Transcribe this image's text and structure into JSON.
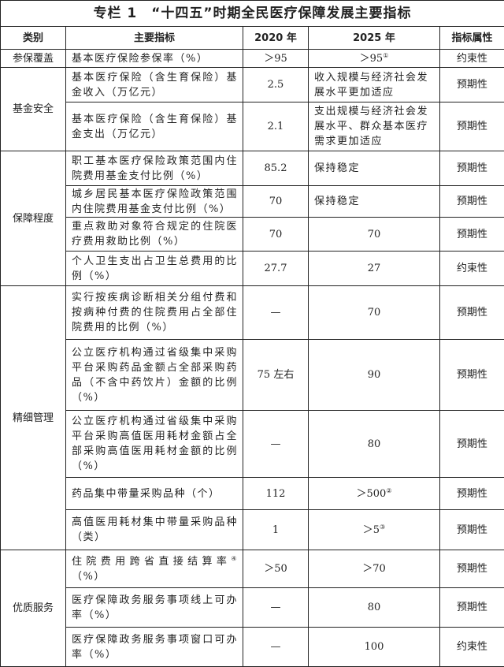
{
  "title": "专栏 1　“十四五”时期全民医疗保障发展主要指标",
  "headers": [
    "类别",
    "主要指标",
    "2020 年",
    "2025 年",
    "指标属性"
  ],
  "rows": [
    {
      "category": "参保覆盖",
      "span": 1,
      "indicator": "基本医疗保险参保率（%）",
      "v2020": "＞95",
      "v2025": "＞95",
      "v2025_sup": "①",
      "attr": "约束性"
    },
    {
      "category": "基金安全",
      "span": 2,
      "indicator": "基本医疗保险（含生育保险）基金收入（万亿元）",
      "v2020": "2.5",
      "v2025": "收入规模与经济社会发展水平更加适应",
      "v2025_left": true,
      "attr": "预期性"
    },
    {
      "indicator": "基本医疗保险（含生育保险）基金支出（万亿元）",
      "v2020": "2.1",
      "v2025": "支出规模与经济社会发展水平、群众基本医疗需求更加适应",
      "v2025_left": true,
      "attr": "预期性"
    },
    {
      "category": "保障程度",
      "span": 4,
      "indicator": "职工基本医疗保险政策范围内住院费用基金支付比例（%）",
      "v2020": "85.2",
      "v2025": "保持稳定",
      "v2025_left": true,
      "attr": "预期性"
    },
    {
      "indicator": "城乡居民基本医疗保险政策范围内住院费用基金支付比例（%）",
      "v2020": "70",
      "v2025": "保持稳定",
      "v2025_left": true,
      "attr": "预期性"
    },
    {
      "indicator": "重点救助对象符合规定的住院医疗费用救助比例（%）",
      "v2020": "70",
      "v2025": "70",
      "attr": "预期性"
    },
    {
      "indicator": "个人卫生支出占卫生总费用的比例（%）",
      "v2020": "27.7",
      "v2025": "27",
      "attr": "约束性"
    },
    {
      "category": "精细管理",
      "span": 5,
      "indicator": "实行按疾病诊断相关分组付费和按病种付费的住院费用占全部住院费用的比例（%）",
      "v2020": "—",
      "v2025": "70",
      "attr": "预期性"
    },
    {
      "indicator": "公立医疗机构通过省级集中采购平台采购药品金额占全部采购药品（不含中药饮片）金额的比例（%）",
      "v2020": "75 左右",
      "v2025": "90",
      "attr": "预期性"
    },
    {
      "indicator": "公立医疗机构通过省级集中采购平台采购高值医用耗材金额占全部采购高值医用耗材金额的比例（%）",
      "v2020": "—",
      "v2025": "80",
      "attr": "预期性"
    },
    {
      "indicator": "药品集中带量采购品种（个）",
      "v2020": "112",
      "v2025": "＞500",
      "v2025_sup": "②",
      "attr": "预期性"
    },
    {
      "indicator": "高值医用耗材集中带量采购品种（类）",
      "v2020": "1",
      "v2025": "＞5",
      "v2025_sup": "③",
      "attr": "预期性"
    },
    {
      "category": "优质服务",
      "span": 3,
      "indicator": "住院费用跨省直接结算率",
      "indicator_sup": "④",
      "indicator_tail": "（%）",
      "v2020": "＞50",
      "v2025": "＞70",
      "attr": "预期性"
    },
    {
      "indicator": "医疗保障政务服务事项线上可办率（%）",
      "v2020": "—",
      "v2025": "80",
      "attr": "预期性"
    },
    {
      "indicator": "医疗保障政务服务事项窗口可办率（%）",
      "v2020": "—",
      "v2025": "100",
      "attr": "约束性"
    }
  ]
}
